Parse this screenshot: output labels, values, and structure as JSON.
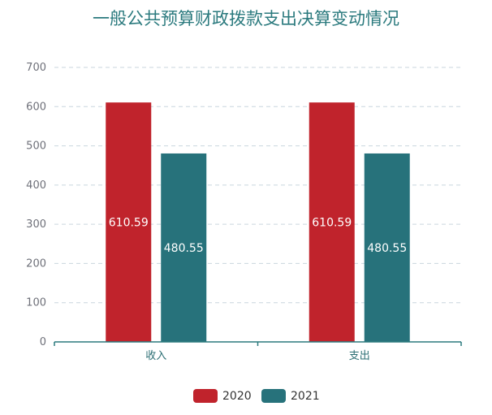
{
  "chart_data": {
    "type": "bar",
    "title": "一般公共预算财政拨款支出决算变动情况",
    "categories": [
      "收入",
      "支出"
    ],
    "series": [
      {
        "name": "2020",
        "values": [
          610.59,
          610.59
        ],
        "color": "#c0232c"
      },
      {
        "name": "2021",
        "values": [
          480.55,
          480.55
        ],
        "color": "#27727b"
      }
    ],
    "ylim": [
      0,
      700
    ],
    "yticks": [
      0,
      100,
      200,
      300,
      400,
      500,
      600,
      700
    ],
    "grid": true,
    "legend_position": "bottom",
    "axis_color": "#2b7a7e",
    "grid_color": "#c9d6de"
  }
}
